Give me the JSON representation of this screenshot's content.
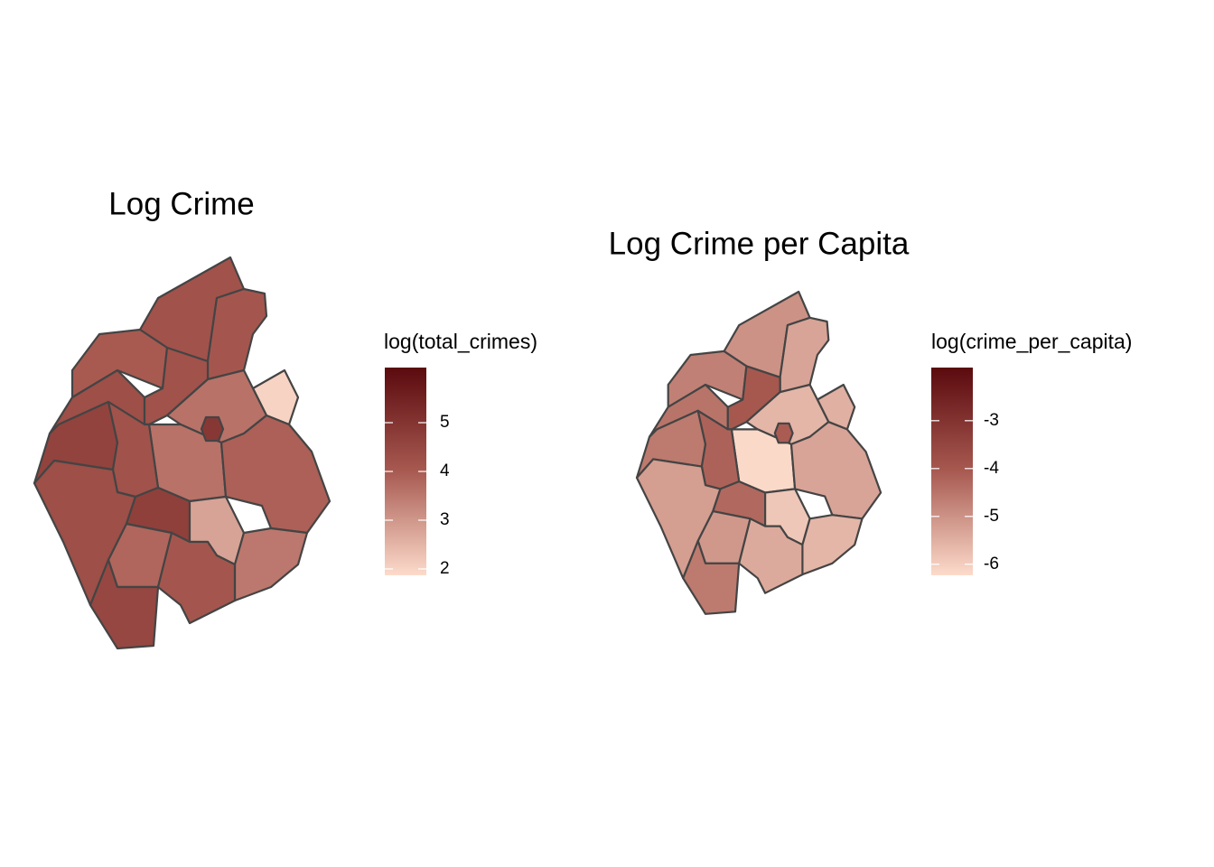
{
  "maps": [
    {
      "title": "Log Crime",
      "legend_title": "log(total_crimes)",
      "colorbar": {
        "lim": [
          1.87,
          6.13
        ],
        "ticks": [
          2,
          3,
          4,
          5
        ]
      },
      "values": [
        4.2,
        4.1,
        2.0,
        4.0,
        4.3,
        4.2,
        3.6,
        3.6,
        3.9,
        4.6,
        4.2,
        4.3,
        4.7,
        2.8,
        3.5,
        3.8,
        4.1,
        4.5,
        4.9
      ]
    },
    {
      "title": "Log Crime per Capita",
      "legend_title": "log(crime_per_capita)",
      "colorbar": {
        "lim": [
          -6.23,
          -1.89
        ],
        "ticks": [
          -3,
          -4,
          -5,
          -6
        ]
      },
      "values": [
        -5.0,
        -5.3,
        -5.5,
        -4.7,
        -4.5,
        -4.0,
        -5.6,
        -6.2,
        -5.3,
        -4.6,
        -4.2,
        -5.2,
        -4.3,
        -5.9,
        -5.6,
        -5.1,
        -5.4,
        -4.6,
        -4.1
      ]
    }
  ]
}
